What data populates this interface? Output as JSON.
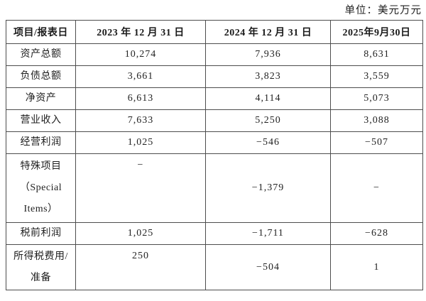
{
  "unit_label": "单位：美元万元",
  "table": {
    "header": [
      "项目/报表日",
      "2023 年 12 月 31 日",
      "2024 年 12 月 31 日",
      "2025年9月30日"
    ],
    "rows": [
      {
        "label_lines": [
          "资产总额"
        ],
        "values": [
          "10,274",
          "7,936",
          "8,631"
        ]
      },
      {
        "label_lines": [
          "负债总额"
        ],
        "values": [
          "3,661",
          "3,823",
          "3,559"
        ]
      },
      {
        "label_lines": [
          "净资产"
        ],
        "values": [
          "6,613",
          "4,114",
          "5,073"
        ]
      },
      {
        "label_lines": [
          "营业收入"
        ],
        "values": [
          "7,633",
          "5,250",
          "3,088"
        ]
      },
      {
        "label_lines": [
          "经营利润"
        ],
        "values": [
          "1,025",
          "−546",
          "−507"
        ]
      },
      {
        "label_lines": [
          "特殊项目",
          "（Special",
          "Items）"
        ],
        "values": [
          "−",
          "−1,379",
          "−"
        ],
        "value_align": [
          "top",
          "middle",
          "middle"
        ]
      },
      {
        "label_lines": [
          "税前利润"
        ],
        "values": [
          "1,025",
          "−1,711",
          "−628"
        ]
      },
      {
        "label_lines": [
          "所得税费用/",
          "准备"
        ],
        "values": [
          "250",
          "−504",
          "1"
        ],
        "value_align": [
          "top",
          "middle",
          "middle"
        ]
      }
    ]
  }
}
